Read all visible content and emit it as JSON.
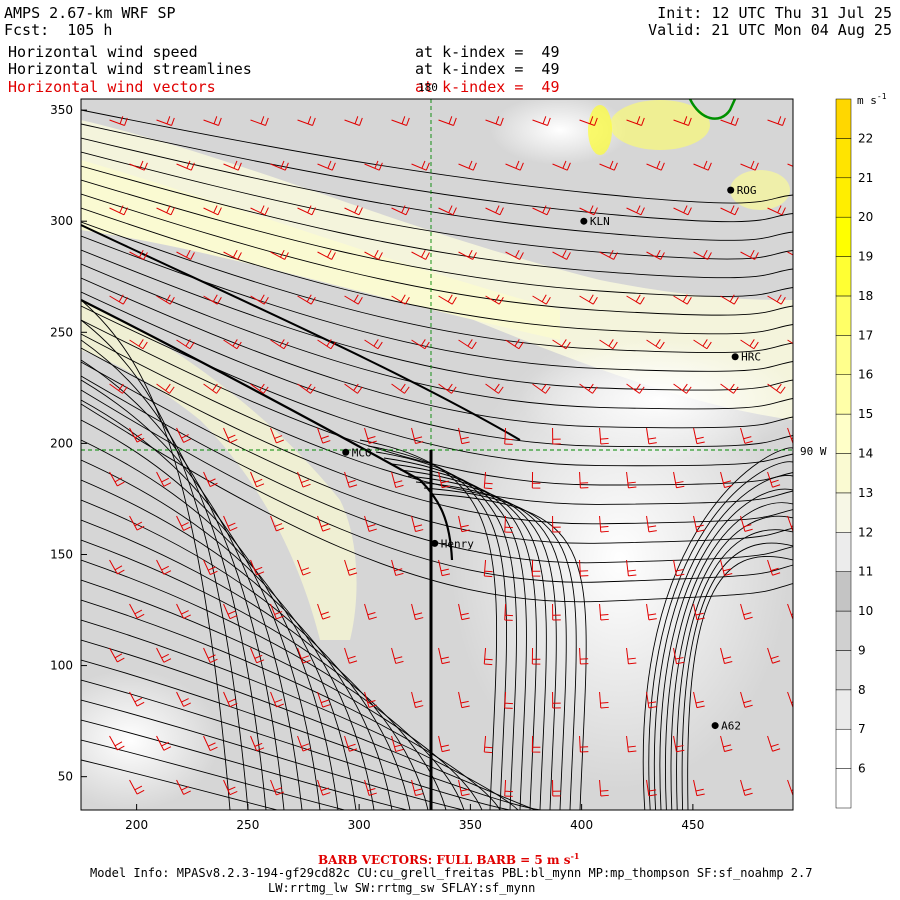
{
  "header": {
    "model": "AMPS 2.67-km WRF SP",
    "forecast": "Fcst:  105 h",
    "init": "Init: 12 UTC Thu 31 Jul 25",
    "valid": "Valid: 21 UTC Mon 04 Aug 25"
  },
  "fields": [
    {
      "name": "Horizontal wind speed",
      "level": "at k-index =  49",
      "color": "#000000"
    },
    {
      "name": "Horizontal wind streamlines",
      "level": "at k-index =  49",
      "color": "#000000"
    },
    {
      "name": "Horizontal wind vectors",
      "level": "at k-index =  49",
      "color": "#e00000"
    }
  ],
  "map": {
    "x_ticks": [
      "200",
      "250",
      "300",
      "350",
      "400",
      "450"
    ],
    "y_ticks": [
      "50",
      "100",
      "150",
      "200",
      "250",
      "300",
      "350"
    ],
    "x_range": [
      175,
      495
    ],
    "y_range": [
      35,
      355
    ],
    "meridian_label": "180",
    "parallel_label": "90 W",
    "stations": [
      {
        "label": "KLN",
        "x": 401,
        "y": 300
      },
      {
        "label": "ROG",
        "x": 467,
        "y": 314
      },
      {
        "label": "HRC",
        "x": 469,
        "y": 239
      },
      {
        "label": "MCO",
        "x": 294,
        "y": 196
      },
      {
        "label": "Henry",
        "x": 334,
        "y": 155
      },
      {
        "label": "A62",
        "x": 460,
        "y": 73
      }
    ]
  },
  "colorbar": {
    "unit": "m s-1",
    "labels": [
      "6",
      "7",
      "8",
      "9",
      "10",
      "11",
      "12",
      "13",
      "14",
      "15",
      "16",
      "17",
      "18",
      "19",
      "20",
      "21",
      "22"
    ],
    "colors": [
      "#ffffff",
      "#ebebeb",
      "#dcdcdc",
      "#d0d0d0",
      "#c4c4c4",
      "#ececec",
      "#f7f7e6",
      "#fafad2",
      "#ffffc8",
      "#ffffa8",
      "#ffff8c",
      "#ffff66",
      "#ffff33",
      "#ffff00",
      "#ffee00",
      "#ffe400",
      "#ffd700"
    ]
  },
  "footer": {
    "barb_note": "BARB VECTORS:  FULL BARB = 5 m s",
    "barb_note_exp": "-1",
    "model_info": "Model Info: MPASv8.2.3-194-gf29cd82c CU:cu_grell_freitas PBL:bl_mynn MP:mp_thompson SF:sf_noahmp 2.7",
    "model_info2": "LW:rrtmg_lw SW:rrtmg_sw SFLAY:sf_mynn"
  }
}
